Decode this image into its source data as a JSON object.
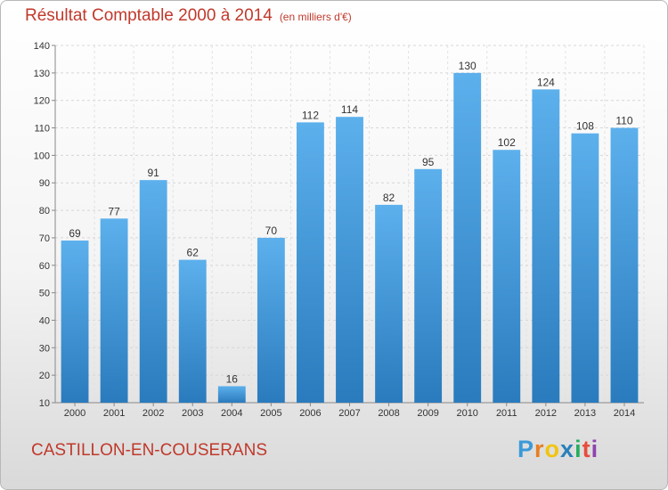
{
  "chart_data": {
    "type": "bar",
    "title": "Résultat Comptable 2000 à 2014",
    "subtitle": "(en milliers d'€)",
    "categories": [
      "2000",
      "2001",
      "2002",
      "2003",
      "2004",
      "2005",
      "2006",
      "2007",
      "2008",
      "2009",
      "2010",
      "2011",
      "2012",
      "2013",
      "2014"
    ],
    "values": [
      69,
      77,
      91,
      62,
      16,
      70,
      112,
      114,
      82,
      95,
      130,
      102,
      124,
      108,
      110
    ],
    "ylim": [
      10,
      140
    ],
    "yticks": [
      10,
      20,
      30,
      40,
      50,
      60,
      70,
      80,
      90,
      100,
      110,
      120,
      130,
      140
    ],
    "grid": true,
    "xlabel": "",
    "ylabel": "",
    "bar_color": "#3d95d6"
  },
  "footer": {
    "town": "CASTILLON-EN-COUSERANS",
    "brand_letters": [
      "P",
      "r",
      "o",
      "x",
      "i",
      "t",
      "i"
    ]
  }
}
